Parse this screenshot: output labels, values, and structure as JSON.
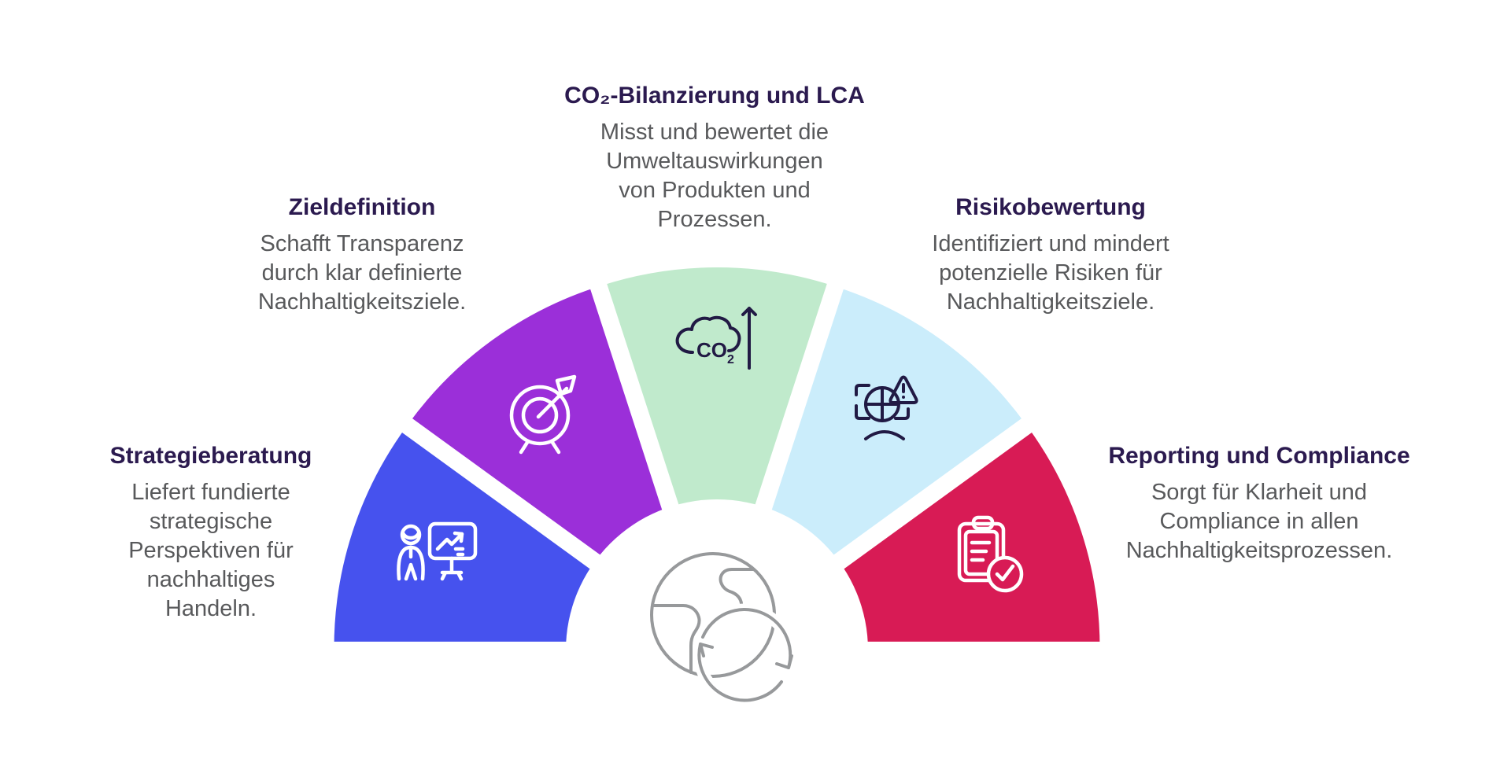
{
  "diagram": {
    "type": "semicircle-fan",
    "center_icon": "globe-recycle-icon"
  },
  "segments": [
    {
      "id": "strategieberatung",
      "title": "Strategieberatung",
      "description": "Liefert fundierte\nstrategische\nPerspektiven für\nnachhaltiges\nHandeln.",
      "color": "#4652EE",
      "icon": "presentation-chart-icon",
      "icon_color": "#FFFFFF"
    },
    {
      "id": "zieldefinition",
      "title": "Zieldefinition",
      "description": "Schafft Transparenz\ndurch klar definierte\nNachhaltigkeitsziele.",
      "color": "#9B2FD9",
      "icon": "target-arrow-icon",
      "icon_color": "#FFFFFF"
    },
    {
      "id": "co2-bilanzierung",
      "title": "CO₂-Bilanzierung und LCA",
      "description": "Misst und bewertet die\nUmweltauswirkungen\nvon Produkten und\nProzessen.",
      "color": "#C0EACC",
      "icon": "co2-cloud-arrow-icon",
      "icon_color": "#211A44"
    },
    {
      "id": "risikobewertung",
      "title": "Risikobewertung",
      "description": "Identifiziert und mindert\npotenzielle Risiken für\nNachhaltigkeitsziele.",
      "color": "#CBEDFB",
      "icon": "risk-warning-icon",
      "icon_color": "#211A44"
    },
    {
      "id": "reporting-compliance",
      "title": "Reporting und Compliance",
      "description": "Sorgt für Klarheit und\nCompliance in allen\nNachhaltigkeitsprozessen.",
      "color": "#D81B55",
      "icon": "clipboard-check-icon",
      "icon_color": "#FFFFFF"
    }
  ],
  "icon_texts": {
    "co2_label": "CO",
    "co2_subscript": "2"
  },
  "colors": {
    "title_text": "#2B1A4F",
    "body_text": "#58595B",
    "globe": "#97999B",
    "wedge_gap": "#FFFFFF",
    "background": "#FFFFFF"
  }
}
